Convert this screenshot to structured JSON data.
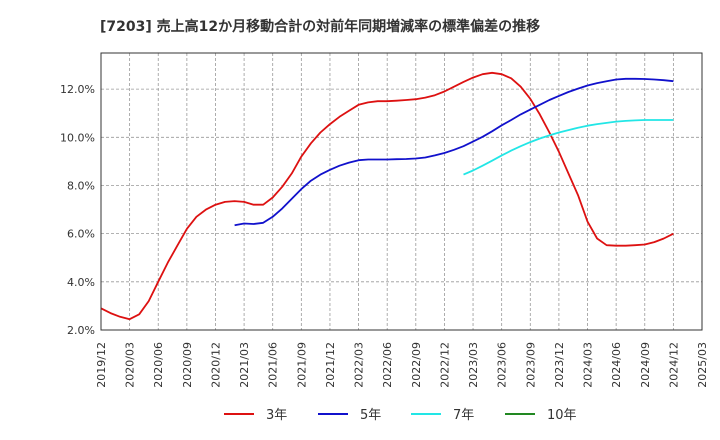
{
  "chart_data": {
    "type": "line",
    "title": "[7203]  売上高12か月移動合計の対前年同期増減率の標準偏差の推移",
    "xlabel": "",
    "ylabel": "",
    "ylim": [
      2.0,
      13.5
    ],
    "y_ticks": [
      "2.0%",
      "4.0%",
      "6.0%",
      "8.0%",
      "10.0%",
      "12.0%"
    ],
    "y_tick_values": [
      2,
      4,
      6,
      8,
      10,
      12
    ],
    "x_range": [
      "2019-12",
      "2025-03"
    ],
    "x_ticks": [
      "2019/12",
      "2020/03",
      "2020/06",
      "2020/09",
      "2020/12",
      "2021/03",
      "2021/06",
      "2021/09",
      "2021/12",
      "2022/03",
      "2022/06",
      "2022/09",
      "2022/12",
      "2023/03",
      "2023/06",
      "2023/09",
      "2023/12",
      "2024/03",
      "2024/06",
      "2024/09",
      "2024/12",
      "2025/03"
    ],
    "grid": true,
    "legend_position": "bottom",
    "series": [
      {
        "name": "3年",
        "color": "#dd1111",
        "x": [
          "2019-12",
          "2020-01",
          "2020-02",
          "2020-03",
          "2020-04",
          "2020-05",
          "2020-06",
          "2020-07",
          "2020-08",
          "2020-09",
          "2020-10",
          "2020-11",
          "2020-12",
          "2021-01",
          "2021-02",
          "2021-03",
          "2021-04",
          "2021-05",
          "2021-06",
          "2021-07",
          "2021-08",
          "2021-09",
          "2021-10",
          "2021-11",
          "2021-12",
          "2022-01",
          "2022-02",
          "2022-03",
          "2022-04",
          "2022-05",
          "2022-06",
          "2022-07",
          "2022-08",
          "2022-09",
          "2022-10",
          "2022-11",
          "2022-12",
          "2023-01",
          "2023-02",
          "2023-03",
          "2023-04",
          "2023-05",
          "2023-06",
          "2023-07",
          "2023-08",
          "2023-09",
          "2023-10",
          "2023-11",
          "2023-12",
          "2024-01",
          "2024-02",
          "2024-03",
          "2024-04",
          "2024-05",
          "2024-06",
          "2024-07",
          "2024-08",
          "2024-09",
          "2024-10",
          "2024-11",
          "2024-12"
        ],
        "values": [
          2.9,
          2.7,
          2.55,
          2.45,
          2.65,
          3.2,
          4.0,
          4.8,
          5.5,
          6.2,
          6.7,
          7.0,
          7.2,
          7.32,
          7.35,
          7.32,
          7.2,
          7.2,
          7.5,
          7.95,
          8.5,
          9.2,
          9.75,
          10.2,
          10.55,
          10.85,
          11.1,
          11.35,
          11.45,
          11.5,
          11.5,
          11.52,
          11.55,
          11.58,
          11.65,
          11.75,
          11.9,
          12.1,
          12.3,
          12.48,
          12.62,
          12.68,
          12.62,
          12.45,
          12.1,
          11.6,
          10.95,
          10.2,
          9.4,
          8.5,
          7.6,
          6.5,
          5.8,
          5.52,
          5.5,
          5.5,
          5.52,
          5.55,
          5.65,
          5.8,
          6.0
        ]
      },
      {
        "name": "5年",
        "color": "#1111cc",
        "x": [
          "2021-02",
          "2021-03",
          "2021-04",
          "2021-05",
          "2021-06",
          "2021-07",
          "2021-08",
          "2021-09",
          "2021-10",
          "2021-11",
          "2021-12",
          "2022-01",
          "2022-02",
          "2022-03",
          "2022-04",
          "2022-05",
          "2022-06",
          "2022-07",
          "2022-08",
          "2022-09",
          "2022-10",
          "2022-11",
          "2022-12",
          "2023-01",
          "2023-02",
          "2023-03",
          "2023-04",
          "2023-05",
          "2023-06",
          "2023-07",
          "2023-08",
          "2023-09",
          "2023-10",
          "2023-11",
          "2023-12",
          "2024-01",
          "2024-02",
          "2024-03",
          "2024-04",
          "2024-05",
          "2024-06",
          "2024-07",
          "2024-08",
          "2024-09",
          "2024-10",
          "2024-11",
          "2024-12"
        ],
        "values": [
          6.35,
          6.42,
          6.4,
          6.45,
          6.7,
          7.05,
          7.45,
          7.85,
          8.2,
          8.45,
          8.65,
          8.82,
          8.95,
          9.05,
          9.08,
          9.08,
          9.08,
          9.09,
          9.1,
          9.12,
          9.16,
          9.25,
          9.35,
          9.48,
          9.63,
          9.82,
          10.02,
          10.25,
          10.5,
          10.72,
          10.95,
          11.15,
          11.35,
          11.55,
          11.72,
          11.88,
          12.02,
          12.15,
          12.25,
          12.33,
          12.4,
          12.43,
          12.43,
          12.42,
          12.4,
          12.37,
          12.33
        ]
      },
      {
        "name": "7年",
        "color": "#22e6e6",
        "x": [
          "2023-02",
          "2023-03",
          "2023-04",
          "2023-05",
          "2023-06",
          "2023-07",
          "2023-08",
          "2023-09",
          "2023-10",
          "2023-11",
          "2023-12",
          "2024-01",
          "2024-02",
          "2024-03",
          "2024-04",
          "2024-05",
          "2024-06",
          "2024-07",
          "2024-08",
          "2024-09",
          "2024-10",
          "2024-11",
          "2024-12"
        ],
        "values": [
          8.45,
          8.62,
          8.82,
          9.03,
          9.25,
          9.45,
          9.63,
          9.8,
          9.95,
          10.08,
          10.2,
          10.3,
          10.4,
          10.48,
          10.55,
          10.6,
          10.65,
          10.68,
          10.7,
          10.72,
          10.72,
          10.72,
          10.72
        ]
      },
      {
        "name": "10年",
        "color": "#228822",
        "x": [],
        "values": []
      }
    ]
  }
}
